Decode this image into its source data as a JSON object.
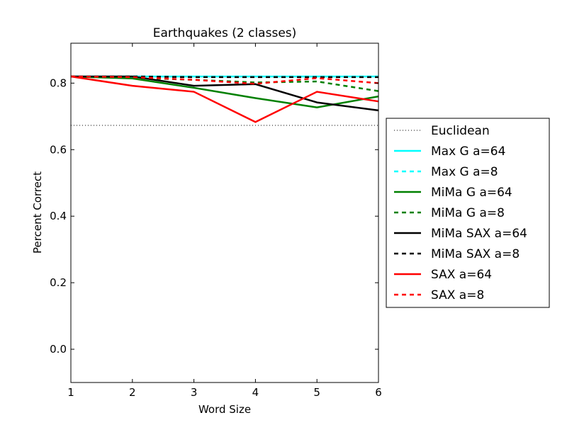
{
  "chart_data": {
    "type": "line",
    "title": "Earthquakes (2 classes)",
    "xlabel": "Word Size",
    "ylabel": "Percent Correct",
    "xlim": [
      1,
      6
    ],
    "ylim": [
      -0.1,
      0.92
    ],
    "x": [
      1,
      2,
      3,
      4,
      5,
      6
    ],
    "xticks": [
      "1",
      "2",
      "3",
      "4",
      "5",
      "6"
    ],
    "yticks": [
      "0.0",
      "0.2",
      "0.4",
      "0.6",
      "0.8"
    ],
    "ytick_values": [
      0.0,
      0.2,
      0.4,
      0.6,
      0.8
    ],
    "grid": false,
    "legend_position": "outside-right",
    "baseline": {
      "name": "Euclidean",
      "value": 0.673,
      "color": "#000000",
      "style": "dotted"
    },
    "series": [
      {
        "name": "Max G a=64",
        "color": "#00ffff",
        "style": "solid",
        "values": [
          0.82,
          0.82,
          0.82,
          0.82,
          0.82,
          0.82
        ]
      },
      {
        "name": "Max G a=8",
        "color": "#00ffff",
        "style": "dashed",
        "values": [
          0.82,
          0.82,
          0.82,
          0.82,
          0.82,
          0.82
        ]
      },
      {
        "name": "MiMa G a=64",
        "color": "#008000",
        "style": "solid",
        "values": [
          0.82,
          0.814,
          0.786,
          0.755,
          0.727,
          0.76
        ]
      },
      {
        "name": "MiMa G a=8",
        "color": "#008000",
        "style": "dashed",
        "values": [
          0.82,
          0.816,
          0.81,
          0.802,
          0.805,
          0.776
        ]
      },
      {
        "name": "MiMa SAX a=64",
        "color": "#000000",
        "style": "solid",
        "values": [
          0.82,
          0.82,
          0.792,
          0.797,
          0.742,
          0.718
        ]
      },
      {
        "name": "MiMa SAX a=8",
        "color": "#000000",
        "style": "dashed",
        "values": [
          0.82,
          0.82,
          0.818,
          0.818,
          0.818,
          0.818
        ]
      },
      {
        "name": "SAX a=64",
        "color": "#ff0000",
        "style": "solid",
        "values": [
          0.82,
          0.792,
          0.774,
          0.683,
          0.774,
          0.745
        ]
      },
      {
        "name": "SAX a=8",
        "color": "#ff0000",
        "style": "dashed",
        "values": [
          0.82,
          0.818,
          0.81,
          0.798,
          0.815,
          0.8
        ]
      }
    ]
  }
}
